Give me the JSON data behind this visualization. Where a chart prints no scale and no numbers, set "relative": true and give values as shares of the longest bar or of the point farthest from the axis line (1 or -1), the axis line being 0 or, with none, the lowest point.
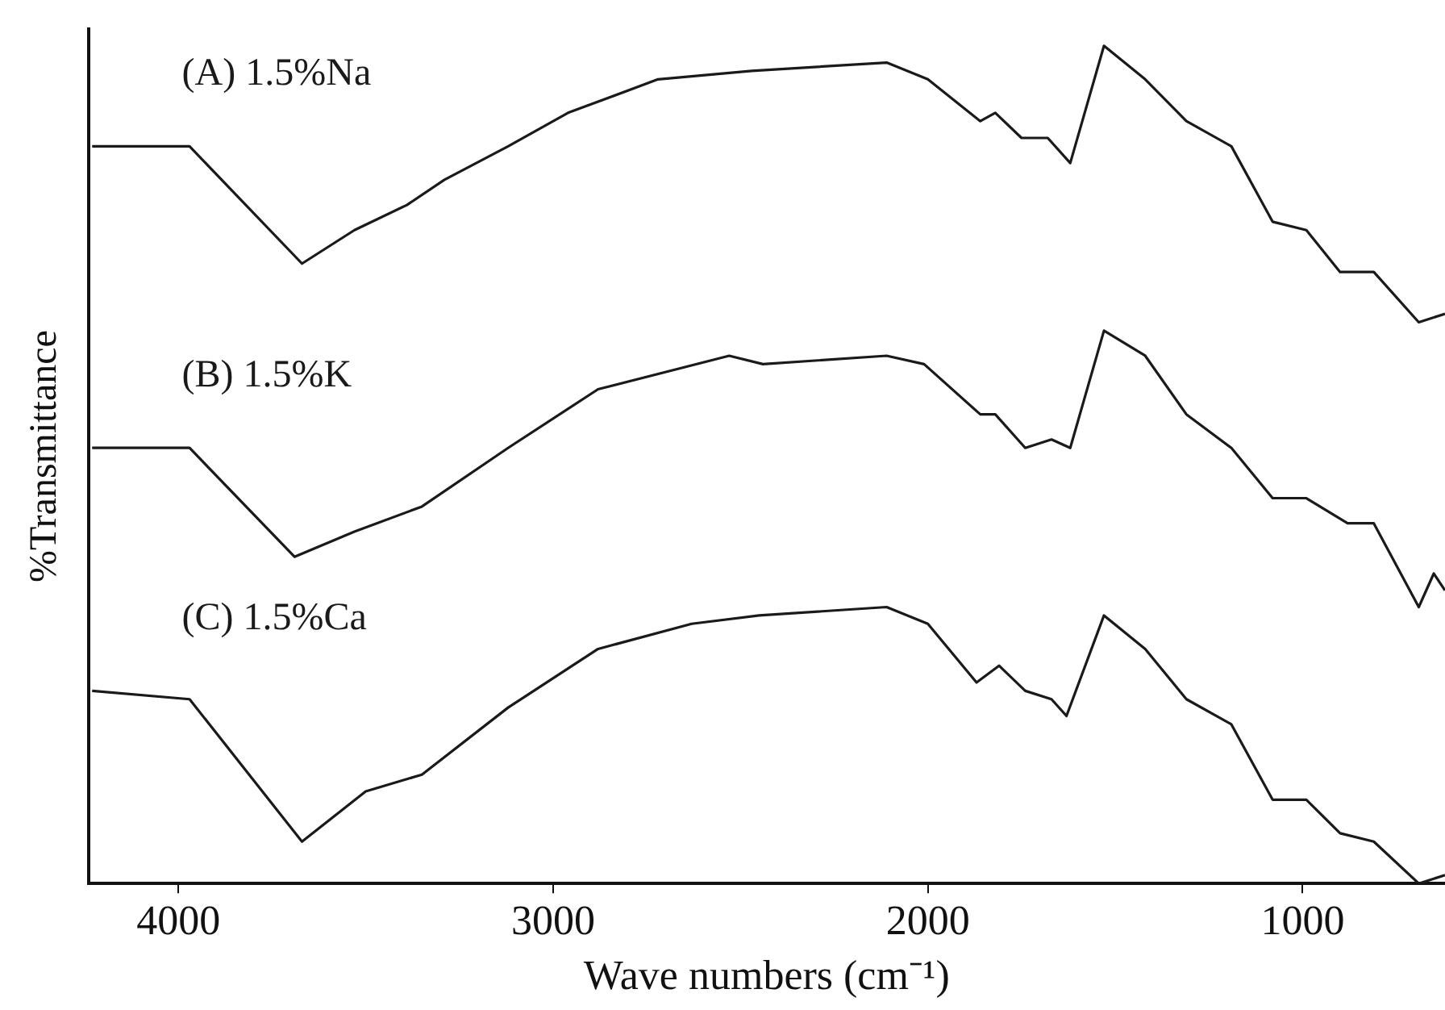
{
  "chart_data": {
    "type": "line",
    "relative": true,
    "xlabel": "Wave numbers (cm⁻¹)",
    "ylabel": "%Transmittance",
    "xlim": [
      4240,
      620
    ],
    "xticks": [
      4000,
      3000,
      2000,
      1000
    ],
    "tick_labels": "x",
    "grid": false,
    "legend": false,
    "marker": "none",
    "line_style": "solid",
    "series": [
      {
        "name": "(A) 1.5%Na",
        "color": "#1a1a1a",
        "x": [
          4230,
          3970,
          3670,
          3530,
          3390,
          3290,
          3120,
          2960,
          2720,
          2470,
          2110,
          2000,
          1860,
          1820,
          1750,
          1680,
          1620,
          1530,
          1420,
          1310,
          1190,
          1080,
          990,
          900,
          810,
          690,
          620
        ],
        "values": [
          0.88,
          0.88,
          0.74,
          0.78,
          0.81,
          0.84,
          0.88,
          0.92,
          0.96,
          0.97,
          0.98,
          0.96,
          0.91,
          0.92,
          0.89,
          0.89,
          0.86,
          1.0,
          0.96,
          0.91,
          0.88,
          0.79,
          0.78,
          0.73,
          0.73,
          0.67,
          0.68
        ]
      },
      {
        "name": "(B) 1.5%K",
        "color": "#1a1a1a",
        "x": [
          4230,
          3970,
          3690,
          3530,
          3350,
          3120,
          2880,
          2530,
          2440,
          2110,
          2010,
          1860,
          1820,
          1740,
          1670,
          1620,
          1530,
          1420,
          1310,
          1190,
          1080,
          990,
          880,
          810,
          690,
          650,
          620
        ],
        "values": [
          0.52,
          0.52,
          0.39,
          0.42,
          0.45,
          0.52,
          0.59,
          0.63,
          0.62,
          0.63,
          0.62,
          0.56,
          0.56,
          0.52,
          0.53,
          0.52,
          0.66,
          0.63,
          0.56,
          0.52,
          0.46,
          0.46,
          0.43,
          0.43,
          0.33,
          0.37,
          0.35
        ]
      },
      {
        "name": "(C) 1.5%Ca",
        "color": "#1a1a1a",
        "x": [
          4230,
          3970,
          3670,
          3500,
          3350,
          3120,
          2880,
          2630,
          2450,
          2110,
          2000,
          1870,
          1810,
          1740,
          1670,
          1630,
          1530,
          1420,
          1310,
          1190,
          1080,
          990,
          900,
          810,
          690,
          620
        ],
        "values": [
          0.23,
          0.22,
          0.05,
          0.11,
          0.13,
          0.21,
          0.28,
          0.31,
          0.32,
          0.33,
          0.31,
          0.24,
          0.26,
          0.23,
          0.22,
          0.2,
          0.32,
          0.28,
          0.22,
          0.19,
          0.1,
          0.1,
          0.06,
          0.05,
          0,
          0.01
        ]
      }
    ]
  }
}
